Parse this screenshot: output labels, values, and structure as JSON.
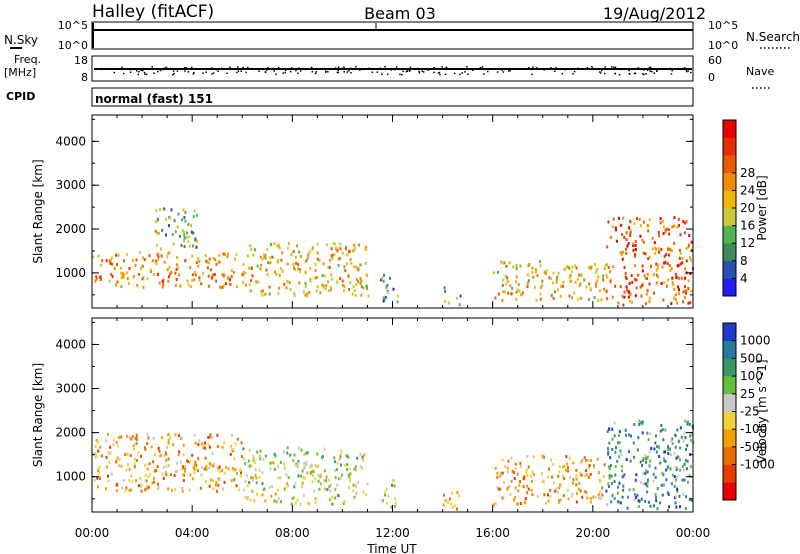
{
  "header": {
    "station": "Halley (fitACF)",
    "beam": "Beam 03",
    "date": "19/Aug/2012"
  },
  "top_panels": {
    "nsky_label": "N.Sky",
    "nsky_ticks": [
      "10^5",
      "10^0"
    ],
    "nsearch_label": "N.Search",
    "nsearch_ticks": [
      "10^5",
      "10^0"
    ],
    "freq_label": "Freq.",
    "freq_unit": "[MHz]",
    "freq_ticks": [
      "18",
      "8"
    ],
    "nave_label": "Nave",
    "nave_ticks": [
      "60",
      "0"
    ],
    "cpid_label": "CPID",
    "cpid_value": "normal (fast) 151"
  },
  "x_axis": {
    "label": "Time UT",
    "ticks": [
      "00:00",
      "04:00",
      "08:00",
      "12:00",
      "16:00",
      "20:00",
      "00:00"
    ]
  },
  "chart_data": [
    {
      "type": "heatmap",
      "name": "power",
      "ylabel": "Slant Range [km]",
      "yticks": [
        "1000",
        "2000",
        "3000",
        "4000"
      ],
      "ylim": [
        200,
        4600
      ],
      "xlim": [
        0,
        24
      ],
      "colorbar_label": "Power [dB]",
      "colorbar_ticks": [
        "4",
        "8",
        "12",
        "16",
        "20",
        "24",
        "28"
      ],
      "colors": [
        "#1e1ef0",
        "#2850b4",
        "#3c8c5a",
        "#50b450",
        "#c8c83c",
        "#f0b400",
        "#f08c00",
        "#e85a00",
        "#e62d00",
        "#e60000"
      ],
      "regions": [
        {
          "t0": 0.0,
          "t1": 6.0,
          "r0": 700,
          "r1": 1500,
          "level": 6
        },
        {
          "t0": 2.5,
          "t1": 4.2,
          "r0": 1500,
          "r1": 2500,
          "level": 3
        },
        {
          "t0": 6.0,
          "t1": 11.0,
          "r0": 500,
          "r1": 1700,
          "level": 5
        },
        {
          "t0": 11.5,
          "t1": 12.2,
          "r0": 300,
          "r1": 1000,
          "level": 2
        },
        {
          "t0": 14.0,
          "t1": 14.8,
          "r0": 300,
          "r1": 700,
          "level": 3
        },
        {
          "t0": 16.0,
          "t1": 20.5,
          "r0": 400,
          "r1": 1300,
          "level": 5
        },
        {
          "t0": 20.5,
          "t1": 24.0,
          "r0": 300,
          "r1": 2300,
          "level": 7
        }
      ]
    },
    {
      "type": "heatmap",
      "name": "velocity",
      "ylabel": "Slant Range [km]",
      "yticks": [
        "1000",
        "2000",
        "3000",
        "4000"
      ],
      "ylim": [
        200,
        4600
      ],
      "xlim": [
        0,
        24
      ],
      "colorbar_label": "Velocity [m s^-1]",
      "colorbar_ticks": [
        "1000",
        "500",
        "100",
        "25",
        "-25",
        "-100",
        "-500",
        "-1000"
      ],
      "colors": [
        "#1e3cc8",
        "#2878a0",
        "#3c9664",
        "#64be3c",
        "#c8c8c8",
        "#f0d23c",
        "#f0a000",
        "#e66e00",
        "#e63c00",
        "#e60000"
      ],
      "regions": [
        {
          "t0": 0.0,
          "t1": 6.0,
          "r0": 700,
          "r1": 2000,
          "level": 6
        },
        {
          "t0": 6.0,
          "t1": 11.0,
          "r0": 400,
          "r1": 1700,
          "level": 4
        },
        {
          "t0": 11.5,
          "t1": 12.2,
          "r0": 300,
          "r1": 1000,
          "level": 4
        },
        {
          "t0": 14.0,
          "t1": 14.8,
          "r0": 300,
          "r1": 700,
          "level": 6
        },
        {
          "t0": 16.0,
          "t1": 20.5,
          "r0": 400,
          "r1": 1500,
          "level": 6
        },
        {
          "t0": 20.5,
          "t1": 24.0,
          "r0": 300,
          "r1": 2300,
          "level": 2
        }
      ]
    }
  ]
}
